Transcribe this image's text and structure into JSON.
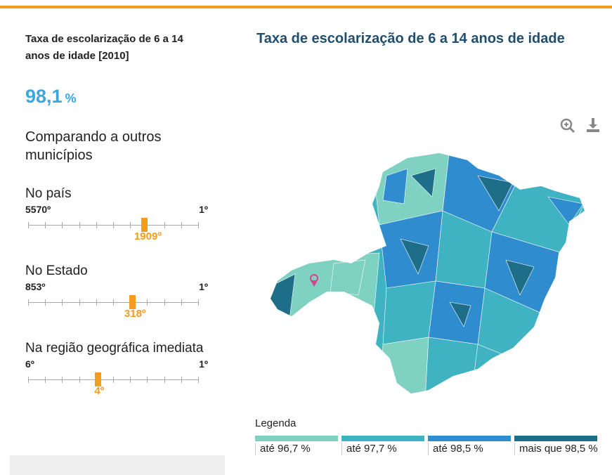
{
  "indicator": {
    "title": "Taxa de escolarização de 6 a 14 anos de idade [2010]",
    "value": "98,1",
    "unit": "%"
  },
  "comparison": {
    "heading": "Comparando a outros municípios",
    "rankings": [
      {
        "label": "No país",
        "min": "5570º",
        "max": "1º",
        "position": "1909º"
      },
      {
        "label": "No Estado",
        "min": "853º",
        "max": "1º",
        "position": "318º"
      },
      {
        "label": "Na região geográfica imediata",
        "min": "6º",
        "max": "1º",
        "position": "4º"
      }
    ]
  },
  "map": {
    "title": "Taxa de escolarização de 6 a 14 anos de idade",
    "legend": {
      "title": "Legenda",
      "items": [
        {
          "label": "até 96,7 %",
          "color": "#7fd1c1"
        },
        {
          "label": "até 97,7 %",
          "color": "#3fb3c2"
        },
        {
          "label": "até 98,5 %",
          "color": "#2f8ccf"
        },
        {
          "label": "mais que 98,5 %",
          "color": "#1e6e8a"
        }
      ]
    }
  }
}
